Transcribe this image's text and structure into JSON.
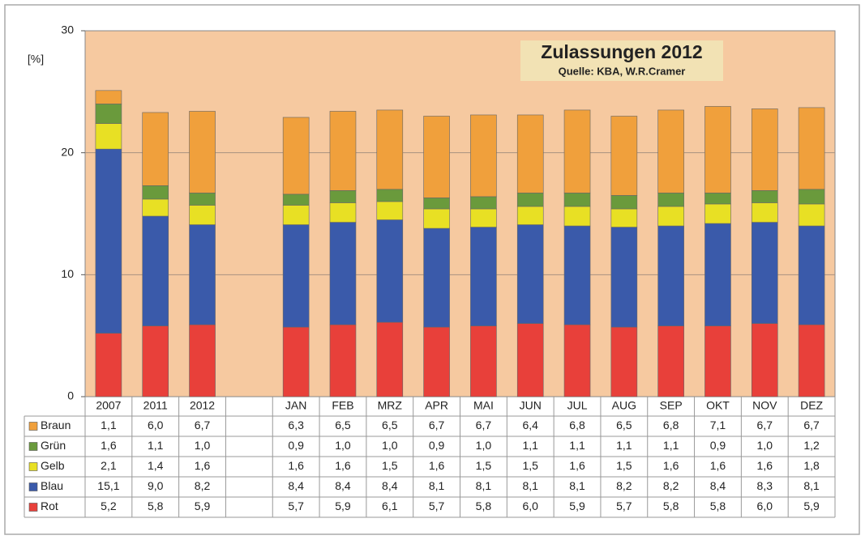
{
  "chart_data": {
    "type": "stacked_bar",
    "title": "Zulassungen 2012",
    "subtitle": "Quelle: KBA, W.R.Cramer",
    "y_label": "[%]",
    "categories": [
      "2007",
      "2011",
      "2012",
      null,
      "JAN",
      "FEB",
      "MRZ",
      "APR",
      "MAI",
      "JUN",
      "JUL",
      "AUG",
      "SEP",
      "OKT",
      "NOV",
      "DEZ"
    ],
    "ylim": [
      0,
      30
    ],
    "yticks": [
      0,
      10,
      20,
      30
    ],
    "grid": true,
    "series": [
      {
        "name": "Braun",
        "color": "#f0a03c",
        "values": [
          1.1,
          6.0,
          6.7,
          null,
          6.3,
          6.5,
          6.5,
          6.7,
          6.7,
          6.4,
          6.8,
          6.5,
          6.8,
          7.1,
          6.7,
          6.7
        ],
        "value_labels": [
          "1,1",
          "6,0",
          "6,7",
          null,
          "6,3",
          "6,5",
          "6,5",
          "6,7",
          "6,7",
          "6,4",
          "6,8",
          "6,5",
          "6,8",
          "7,1",
          "6,7",
          "6,7"
        ]
      },
      {
        "name": "Grün",
        "color": "#6a9a3c",
        "values": [
          1.6,
          1.1,
          1.0,
          null,
          0.9,
          1.0,
          1.0,
          0.9,
          1.0,
          1.1,
          1.1,
          1.1,
          1.1,
          0.9,
          1.0,
          1.2
        ],
        "value_labels": [
          "1,6",
          "1,1",
          "1,0",
          null,
          "0,9",
          "1,0",
          "1,0",
          "0,9",
          "1,0",
          "1,1",
          "1,1",
          "1,1",
          "1,1",
          "0,9",
          "1,0",
          "1,2"
        ]
      },
      {
        "name": "Gelb",
        "color": "#e8e024",
        "values": [
          2.1,
          1.4,
          1.6,
          null,
          1.6,
          1.6,
          1.5,
          1.6,
          1.5,
          1.5,
          1.6,
          1.5,
          1.6,
          1.6,
          1.6,
          1.8
        ],
        "value_labels": [
          "2,1",
          "1,4",
          "1,6",
          null,
          "1,6",
          "1,6",
          "1,5",
          "1,6",
          "1,5",
          "1,5",
          "1,6",
          "1,5",
          "1,6",
          "1,6",
          "1,6",
          "1,8"
        ]
      },
      {
        "name": "Blau",
        "color": "#3a5aaa",
        "values": [
          15.1,
          9.0,
          8.2,
          null,
          8.4,
          8.4,
          8.4,
          8.1,
          8.1,
          8.1,
          8.1,
          8.2,
          8.2,
          8.4,
          8.3,
          8.1
        ],
        "value_labels": [
          "15,1",
          "9,0",
          "8,2",
          null,
          "8,4",
          "8,4",
          "8,4",
          "8,1",
          "8,1",
          "8,1",
          "8,1",
          "8,2",
          "8,2",
          "8,4",
          "8,3",
          "8,1"
        ]
      },
      {
        "name": "Rot",
        "color": "#e8403a",
        "values": [
          5.2,
          5.8,
          5.9,
          null,
          5.7,
          5.9,
          6.1,
          5.7,
          5.8,
          6.0,
          5.9,
          5.7,
          5.8,
          5.8,
          6.0,
          5.9
        ],
        "value_labels": [
          "5,2",
          "5,8",
          "5,9",
          null,
          "5,7",
          "5,9",
          "6,1",
          "5,7",
          "5,8",
          "6,0",
          "5,9",
          "5,7",
          "5,8",
          "5,8",
          "6,0",
          "5,9"
        ]
      }
    ]
  }
}
